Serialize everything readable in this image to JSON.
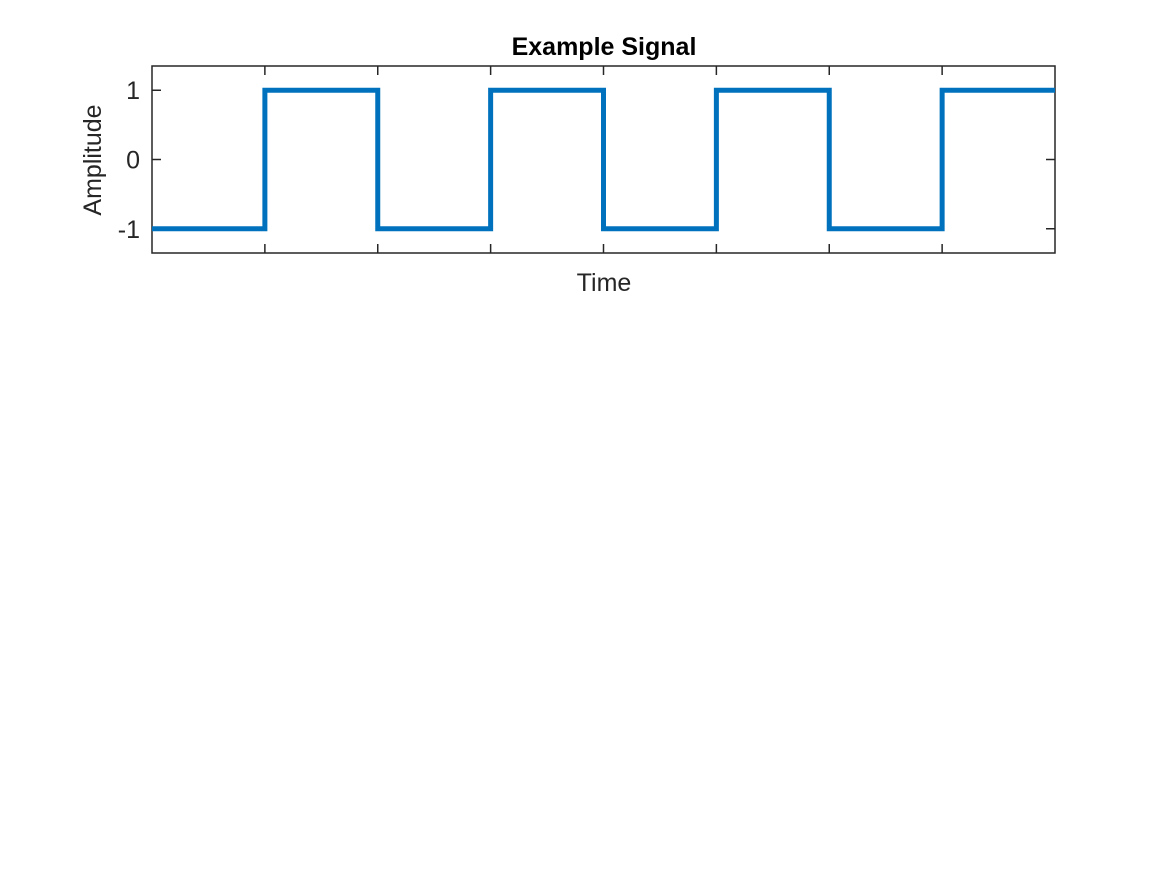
{
  "chart_data": {
    "type": "line",
    "title": "Example Signal",
    "xlabel": "Time",
    "ylabel": "Amplitude",
    "xlim": [
      0,
      8
    ],
    "ylim": [
      -1.35,
      1.35
    ],
    "x_ticks": [
      1,
      2,
      3,
      4,
      5,
      6,
      7
    ],
    "x_tick_labels": [],
    "y_ticks": [
      -1,
      0,
      1
    ],
    "y_tick_labels": [
      "-1",
      "0",
      "1"
    ],
    "grid": false,
    "legend": "none",
    "series": [
      {
        "color": "#0072BD",
        "x": [
          0,
          1,
          1,
          2,
          2,
          3,
          3,
          4,
          4,
          5,
          5,
          6,
          6,
          7,
          7,
          8
        ],
        "values": [
          -1,
          -1,
          1,
          1,
          -1,
          -1,
          1,
          1,
          -1,
          -1,
          1,
          1,
          -1,
          -1,
          1,
          1
        ]
      }
    ]
  }
}
